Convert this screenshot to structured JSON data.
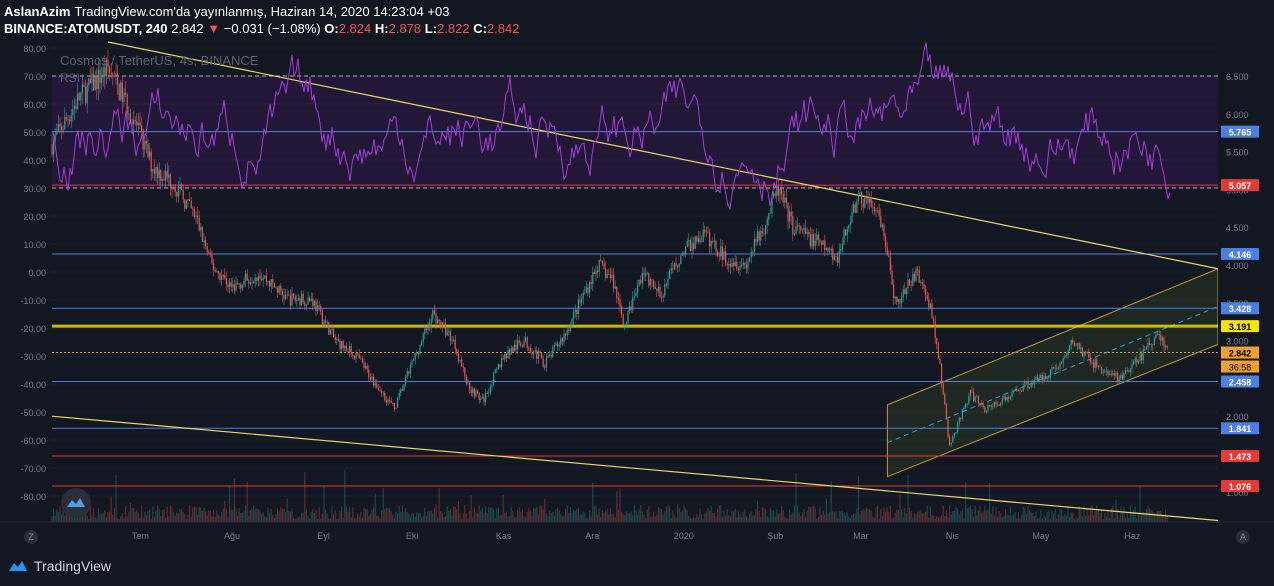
{
  "header": {
    "author": "AslanAzim",
    "published": "TradingView.com'da yayınlanmış, Haziran 14, 2020 14:23:04 +03",
    "symbol": "BINANCE:ATOMUSDT, 240",
    "last": "2.842",
    "change": "−0.031 (−1.08%)",
    "o_label": "O:",
    "o": "2.824",
    "h_label": "H:",
    "h": "2.878",
    "l_label": "L:",
    "l": "2.822",
    "c_label": "C:",
    "c": "2.842"
  },
  "watermark": "Cosmos / TetherUS, 4s, BINANCE",
  "rsi_label": "RSI",
  "footer": {
    "brand": "TradingView",
    "left_button": "Z",
    "right_button": "A"
  },
  "colors": {
    "background": "#131722",
    "up": "#26a69a",
    "down": "#ef5350",
    "rsi": "#a23fd6",
    "trendline": "#e5d96b",
    "support_blue": "#4c7fe0",
    "support_red": "#e53935",
    "highlight_yellow": "#f5e400"
  },
  "chart_data": {
    "type": "candlestick",
    "x_ticks": [
      "Tem",
      "Ağu",
      "Eyl",
      "Eki",
      "Kas",
      "Ara",
      "2020",
      "Şub",
      "Mar",
      "Nis",
      "May",
      "Haz"
    ],
    "left_axis_ticks": [
      "80.00",
      "70.00",
      "60.00",
      "50.00",
      "40.00",
      "30.00",
      "20.00",
      "10.00",
      "0.00",
      "-10.00",
      "-20.00",
      "-30.00",
      "-40.00",
      "-50.00",
      "-60.00",
      "-70.00",
      "-80.00"
    ],
    "right_axis_ticks": [
      "6.500",
      "6.000",
      "5.500",
      "5.000",
      "4.500",
      "4.000",
      "3.500",
      "3.000",
      "2.500",
      "2.000",
      "1.500",
      "1.000"
    ],
    "price_range": [
      0.6,
      6.95
    ],
    "levels": [
      {
        "price": 5.765,
        "label": "5.765",
        "color": "#4c7fe0"
      },
      {
        "price": 5.057,
        "label": "5.057",
        "color": "#e53935"
      },
      {
        "price": 4.146,
        "label": "4.146",
        "color": "#4c7fe0"
      },
      {
        "price": 3.428,
        "label": "3.428",
        "color": "#4c7fe0"
      },
      {
        "price": 3.191,
        "label": "3.191",
        "color": "#f5e400"
      },
      {
        "price": 2.458,
        "label": "2.458",
        "color": "#4c7fe0"
      },
      {
        "price": 1.841,
        "label": "1.841",
        "color": "#4c7fe0"
      },
      {
        "price": 1.473,
        "label": "1.473",
        "color": "#e53935"
      },
      {
        "price": 1.076,
        "label": "1.076",
        "color": "#e53935"
      }
    ],
    "current_price": {
      "label": "2.842",
      "countdown": "36:58"
    },
    "rsi_band": [
      30,
      70
    ],
    "price_path": [
      {
        "date": "2019-06-01",
        "price": 5.6
      },
      {
        "date": "2019-06-10",
        "price": 6.2
      },
      {
        "date": "2019-06-20",
        "price": 6.6
      },
      {
        "date": "2019-06-28",
        "price": 6.0
      },
      {
        "date": "2019-07-05",
        "price": 5.3
      },
      {
        "date": "2019-07-12",
        "price": 5.1
      },
      {
        "date": "2019-07-20",
        "price": 4.6
      },
      {
        "date": "2019-07-25",
        "price": 4.0
      },
      {
        "date": "2019-08-01",
        "price": 3.7
      },
      {
        "date": "2019-08-10",
        "price": 3.9
      },
      {
        "date": "2019-08-20",
        "price": 3.55
      },
      {
        "date": "2019-08-28",
        "price": 3.55
      },
      {
        "date": "2019-09-05",
        "price": 3.0
      },
      {
        "date": "2019-09-12",
        "price": 2.8
      },
      {
        "date": "2019-09-20",
        "price": 2.35
      },
      {
        "date": "2019-09-25",
        "price": 2.1
      },
      {
        "date": "2019-10-01",
        "price": 2.7
      },
      {
        "date": "2019-10-08",
        "price": 3.35
      },
      {
        "date": "2019-10-15",
        "price": 3.0
      },
      {
        "date": "2019-10-20",
        "price": 2.4
      },
      {
        "date": "2019-10-25",
        "price": 2.2
      },
      {
        "date": "2019-11-01",
        "price": 2.8
      },
      {
        "date": "2019-11-08",
        "price": 3.0
      },
      {
        "date": "2019-11-15",
        "price": 2.7
      },
      {
        "date": "2019-11-22",
        "price": 3.1
      },
      {
        "date": "2019-11-28",
        "price": 3.6
      },
      {
        "date": "2019-12-03",
        "price": 4.0
      },
      {
        "date": "2019-12-08",
        "price": 3.8
      },
      {
        "date": "2019-12-12",
        "price": 3.2
      },
      {
        "date": "2019-12-18",
        "price": 3.9
      },
      {
        "date": "2019-12-24",
        "price": 3.6
      },
      {
        "date": "2020-01-01",
        "price": 4.2
      },
      {
        "date": "2020-01-08",
        "price": 4.4
      },
      {
        "date": "2020-01-15",
        "price": 4.1
      },
      {
        "date": "2020-01-22",
        "price": 4.0
      },
      {
        "date": "2020-01-28",
        "price": 4.5
      },
      {
        "date": "2020-02-02",
        "price": 5.0
      },
      {
        "date": "2020-02-07",
        "price": 4.5
      },
      {
        "date": "2020-02-15",
        "price": 4.3
      },
      {
        "date": "2020-02-22",
        "price": 4.1
      },
      {
        "date": "2020-02-28",
        "price": 4.8
      },
      {
        "date": "2020-03-03",
        "price": 4.9
      },
      {
        "date": "2020-03-07",
        "price": 4.6
      },
      {
        "date": "2020-03-10",
        "price": 4.2
      },
      {
        "date": "2020-03-12",
        "price": 3.5
      },
      {
        "date": "2020-03-15",
        "price": 3.6
      },
      {
        "date": "2020-03-20",
        "price": 3.9
      },
      {
        "date": "2020-03-25",
        "price": 3.4
      },
      {
        "date": "2020-03-28",
        "price": 2.6
      },
      {
        "date": "2020-03-31",
        "price": 1.6
      },
      {
        "date": "2020-04-03",
        "price": 1.9
      },
      {
        "date": "2020-04-07",
        "price": 2.3
      },
      {
        "date": "2020-04-12",
        "price": 2.1
      },
      {
        "date": "2020-04-18",
        "price": 2.2
      },
      {
        "date": "2020-04-25",
        "price": 2.4
      },
      {
        "date": "2020-05-01",
        "price": 2.5
      },
      {
        "date": "2020-05-08",
        "price": 2.7
      },
      {
        "date": "2020-05-12",
        "price": 3.0
      },
      {
        "date": "2020-05-16",
        "price": 2.8
      },
      {
        "date": "2020-05-22",
        "price": 2.6
      },
      {
        "date": "2020-05-28",
        "price": 2.5
      },
      {
        "date": "2020-06-02",
        "price": 2.7
      },
      {
        "date": "2020-06-06",
        "price": 2.9
      },
      {
        "date": "2020-06-10",
        "price": 3.1
      },
      {
        "date": "2020-06-13",
        "price": 2.842
      }
    ]
  }
}
